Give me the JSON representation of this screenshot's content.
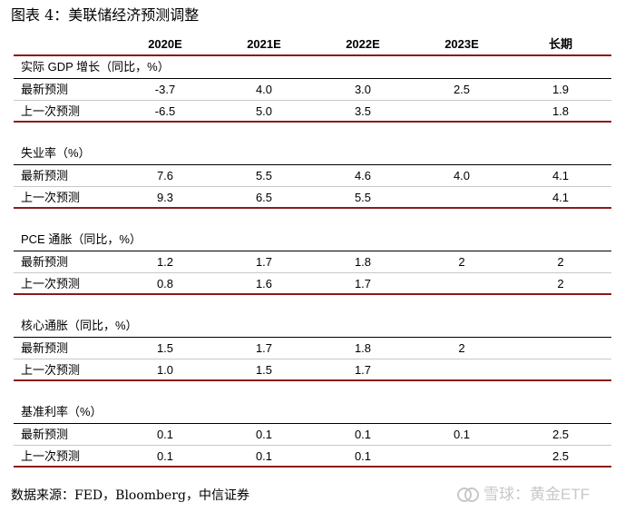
{
  "title": "图表 4：美联储经济预测调整",
  "columns": [
    "2020E",
    "2021E",
    "2022E",
    "2023E",
    "长期"
  ],
  "sections": [
    {
      "title": "实际 GDP 增长（同比，%）",
      "rows": [
        {
          "label": "最新预测",
          "values": [
            "-3.7",
            "4.0",
            "3.0",
            "2.5",
            "1.9"
          ]
        },
        {
          "label": "上一次预测",
          "values": [
            "-6.5",
            "5.0",
            "3.5",
            "",
            "1.8"
          ]
        }
      ]
    },
    {
      "title": "失业率（%）",
      "rows": [
        {
          "label": "最新预测",
          "values": [
            "7.6",
            "5.5",
            "4.6",
            "4.0",
            "4.1"
          ]
        },
        {
          "label": "上一次预测",
          "values": [
            "9.3",
            "6.5",
            "5.5",
            "",
            "4.1"
          ]
        }
      ]
    },
    {
      "title": "PCE 通胀（同比，%）",
      "rows": [
        {
          "label": "最新预测",
          "values": [
            "1.2",
            "1.7",
            "1.8",
            "2",
            "2"
          ]
        },
        {
          "label": "上一次预测",
          "values": [
            "0.8",
            "1.6",
            "1.7",
            "",
            "2"
          ]
        }
      ]
    },
    {
      "title": "核心通胀（同比，%）",
      "rows": [
        {
          "label": "最新预测",
          "values": [
            "1.5",
            "1.7",
            "1.8",
            "2",
            ""
          ]
        },
        {
          "label": "上一次预测",
          "values": [
            "1.0",
            "1.5",
            "1.7",
            "",
            ""
          ]
        }
      ]
    },
    {
      "title": "基准利率（%）",
      "rows": [
        {
          "label": "最新预测",
          "values": [
            "0.1",
            "0.1",
            "0.1",
            "0.1",
            "2.5"
          ]
        },
        {
          "label": "上一次预测",
          "values": [
            "0.1",
            "0.1",
            "0.1",
            "",
            "2.5"
          ]
        }
      ]
    }
  ],
  "source": "数据来源：FED，Bloomberg，中信证券",
  "watermark": {
    "text": "雪球：黄金ETF",
    "icon": "snowball-logo-icon"
  }
}
